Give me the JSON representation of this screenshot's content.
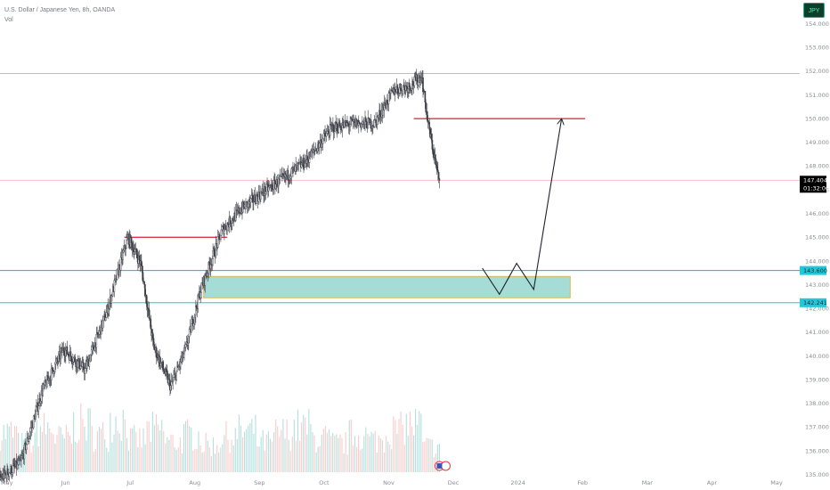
{
  "legend": {
    "symbol": "U.S. Dollar / Japanese Yen, 8h, OANDA",
    "indicator": "Vol"
  },
  "currency_badge": "JPY",
  "colors": {
    "up": "#26a69a",
    "down": "#ef5350",
    "candle": "#3a3d45",
    "zone_fill": "#a5dcd6",
    "zone_border": "#d9b85a",
    "resistance": "#e0354a",
    "support": "#00bcd4",
    "high_line": "#b2b5be",
    "price_line": "#f7b6bc",
    "price_label_bg": "#000000",
    "support_label_bg": "#26c6da"
  },
  "price_labels": {
    "last_price": "147.404",
    "countdown": "01:32:06",
    "upper_support": "143.600",
    "lower_support": "142.241"
  },
  "chart_data": {
    "type": "candlestick",
    "y_axis": {
      "min": 134.8,
      "max": 155.0,
      "ticks": [
        "135.000",
        "136.000",
        "137.000",
        "138.000",
        "139.000",
        "140.000",
        "141.000",
        "142.000",
        "143.000",
        "144.000",
        "145.000",
        "146.000",
        "147.000",
        "148.000",
        "149.000",
        "150.000",
        "151.000",
        "152.000",
        "153.000",
        "154.000"
      ]
    },
    "x_axis": {
      "labels": [
        "May",
        "Jun",
        "Jul",
        "Aug",
        "Sep",
        "Oct",
        "Nov",
        "Dec",
        "2024",
        "Feb",
        "Mar",
        "Apr",
        "May"
      ],
      "range": [
        "2023-05-01",
        "2024-05-06"
      ]
    },
    "price_path": [
      {
        "date": "2023-05-01",
        "price": 134.8
      },
      {
        "date": "2023-05-11",
        "price": 135.5
      },
      {
        "date": "2023-05-21",
        "price": 138.5
      },
      {
        "date": "2023-05-31",
        "price": 140.3
      },
      {
        "date": "2023-06-10",
        "price": 139.4
      },
      {
        "date": "2023-06-20",
        "price": 141.8
      },
      {
        "date": "2023-06-30",
        "price": 145.0
      },
      {
        "date": "2023-07-06",
        "price": 143.9
      },
      {
        "date": "2023-07-12",
        "price": 140.4
      },
      {
        "date": "2023-07-20",
        "price": 138.7
      },
      {
        "date": "2023-07-27",
        "price": 140.3
      },
      {
        "date": "2023-08-03",
        "price": 142.8
      },
      {
        "date": "2023-08-13",
        "price": 145.3
      },
      {
        "date": "2023-08-22",
        "price": 146.2
      },
      {
        "date": "2023-09-01",
        "price": 146.9
      },
      {
        "date": "2023-09-11",
        "price": 147.5
      },
      {
        "date": "2023-09-21",
        "price": 148.2
      },
      {
        "date": "2023-10-03",
        "price": 149.6
      },
      {
        "date": "2023-10-13",
        "price": 149.8
      },
      {
        "date": "2023-10-23",
        "price": 149.8
      },
      {
        "date": "2023-11-01",
        "price": 151.2
      },
      {
        "date": "2023-11-09",
        "price": 151.4
      },
      {
        "date": "2023-11-14",
        "price": 151.8
      },
      {
        "date": "2023-11-17",
        "price": 149.8
      },
      {
        "date": "2023-11-21",
        "price": 147.9
      },
      {
        "date": "2023-11-22",
        "price": 147.4
      }
    ],
    "last_price": 147.404,
    "volume_axis": {
      "min": 0,
      "max": 100
    },
    "volume_profile": [
      58,
      42,
      64,
      50,
      70,
      55,
      78,
      48,
      62,
      45,
      55,
      40,
      52,
      60,
      44,
      58,
      66,
      50,
      42,
      55,
      48,
      62,
      70,
      38
    ],
    "annotations": {
      "highest_high": 151.9,
      "resistance_lines": [
        {
          "price": 145.0,
          "from": "2023-06-28",
          "to": "2023-08-15"
        },
        {
          "price": 150.0,
          "from": "2023-11-10",
          "to": "2024-01-29"
        }
      ],
      "support_lines": [
        143.6,
        142.241
      ],
      "demand_zone": {
        "from": "2023-08-04",
        "to": "2024-01-22",
        "low": 142.45,
        "high": 143.35
      },
      "projection_path": [
        {
          "date": "2023-12-12",
          "price": 143.7
        },
        {
          "date": "2023-12-20",
          "price": 142.6
        },
        {
          "date": "2023-12-28",
          "price": 143.9
        },
        {
          "date": "2024-01-05",
          "price": 142.8
        },
        {
          "date": "2024-01-18",
          "price": 150.0
        }
      ]
    }
  }
}
